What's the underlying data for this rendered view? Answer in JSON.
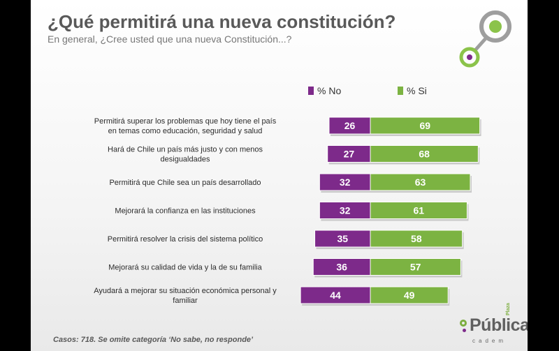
{
  "header": {
    "title": "¿Qué permitirá una nueva constitución?",
    "subtitle": "En general, ¿Cree usted que una nueva Constitución...?"
  },
  "footnote": "Casos: 718. Se omite categoría  ‘No sabe, no responde’",
  "logo": {
    "word": "Pública",
    "plaza": "Plaza",
    "cadem": "cadem"
  },
  "colors": {
    "no": "#7d2a8a",
    "si": "#7cb342",
    "title": "#595959"
  },
  "chart_data": {
    "type": "bar",
    "orientation": "diverging-horizontal",
    "legend": [
      {
        "name": "% No",
        "color": "#7d2a8a"
      },
      {
        "name": "% Si",
        "color": "#7cb342"
      }
    ],
    "legend_position": "top",
    "categories": [
      "Permitirá superar los problemas que hoy tiene el país en temas como educación, seguridad y salud",
      "Hará de Chile un país más justo y con menos desigualdades",
      "Permitirá que Chile sea un país desarrollado",
      "Mejorará la confianza en las instituciones",
      "Permitirá resolver la crisis del sistema político",
      "Mejorará su calidad de vida y la de su familia",
      "Ayudará a mejorar su situación económica personal y familiar"
    ],
    "series": [
      {
        "name": "% No",
        "values": [
          26,
          27,
          32,
          32,
          35,
          36,
          44
        ]
      },
      {
        "name": "% Si",
        "values": [
          69,
          68,
          63,
          61,
          58,
          57,
          49
        ]
      }
    ],
    "grid": false
  }
}
